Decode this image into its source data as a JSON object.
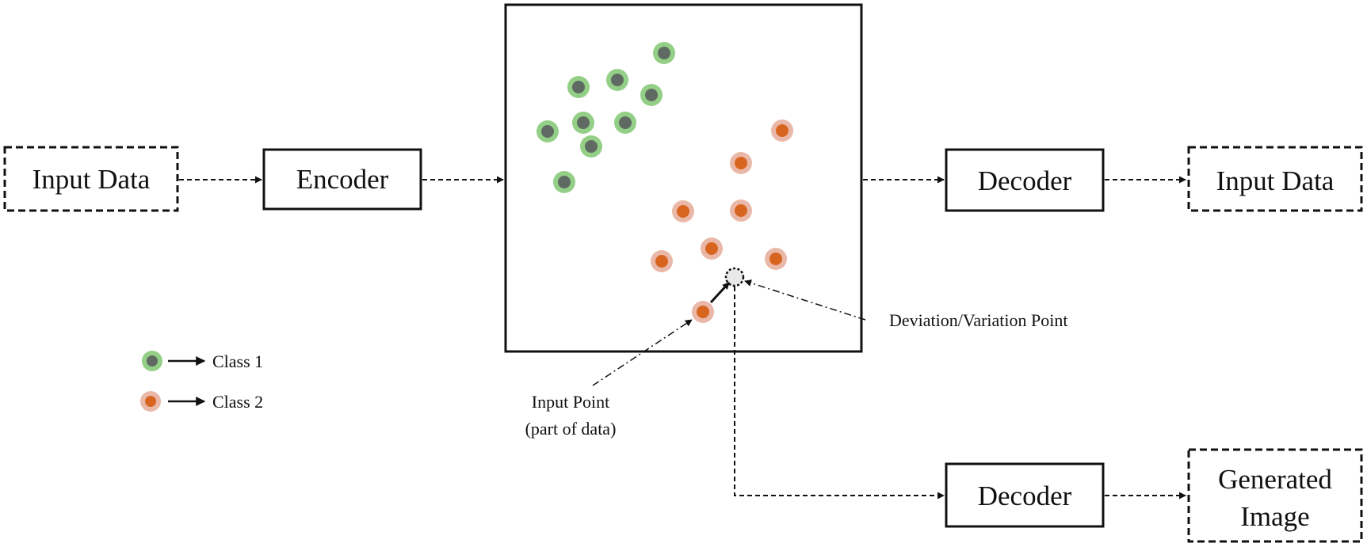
{
  "boxes": {
    "input_left": "Input Data",
    "encoder": "Encoder",
    "decoder_top": "Decoder",
    "output_top": "Input Data",
    "decoder_bottom": "Decoder",
    "generated": [
      "Generated",
      "Image"
    ]
  },
  "latent_space": {
    "deviation_label": "Deviation/Variation Point",
    "input_point_label": [
      "Input Point",
      "(part of data)"
    ]
  },
  "legend": [
    {
      "label": "Class 1"
    },
    {
      "label": "Class 2"
    }
  ],
  "colors": {
    "class1_inner": "#5f6a63",
    "class1_ring": "#93cf86",
    "class2_inner": "#d8651f",
    "class2_ring": "#e9b8a8",
    "deviation_fill": "#e9e9e9"
  }
}
